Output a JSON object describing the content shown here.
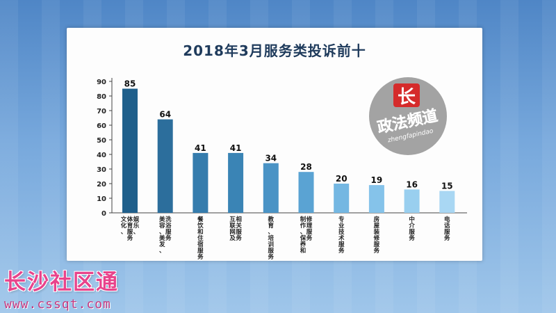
{
  "title": "2018年3月服务类投诉前十",
  "watermark": {
    "brand_text": "政法频道",
    "pinyin": "zhengfapindao"
  },
  "site": {
    "brand": "长沙社区通",
    "url": "www.cssqt.com"
  },
  "chart_data": {
    "type": "bar",
    "title": "2018年3月服务类投诉前十",
    "categories": [
      [
        "文化、",
        "体育服务",
        "娱乐、"
      ],
      [
        "美容、美发、",
        "洗浴服务"
      ],
      [
        "餐饮和住宿服务"
      ],
      [
        "互联网及",
        "相关服务"
      ],
      [
        "教育、培训服务"
      ],
      [
        "制作、保养和",
        "修理服务"
      ],
      [
        "专业技术服务"
      ],
      [
        "房屋装修服务"
      ],
      [
        "中介服务"
      ],
      [
        "电话服务"
      ]
    ],
    "values": [
      85,
      64,
      41,
      41,
      34,
      28,
      20,
      19,
      16,
      15
    ],
    "yticks": [
      0,
      10,
      20,
      30,
      40,
      50,
      60,
      70,
      80,
      90
    ],
    "ylim": [
      0,
      90
    ],
    "bar_colors": [
      "#1f5f8b",
      "#2c6e9c",
      "#357cad",
      "#3a84b5",
      "#4a93c5",
      "#5aa3d3",
      "#74b7e2",
      "#85c3ea",
      "#99cfef",
      "#a9d7f3"
    ]
  }
}
